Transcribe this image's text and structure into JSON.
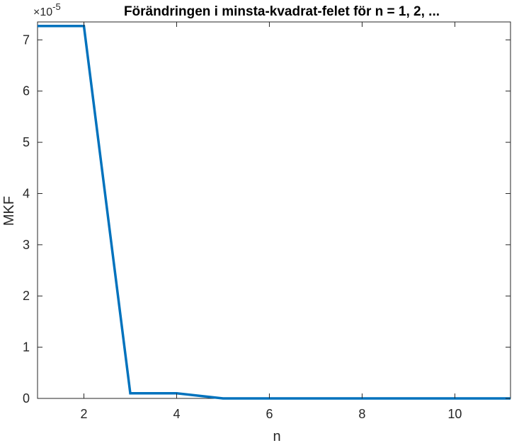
{
  "chart_data": {
    "type": "line",
    "title": "Förändringen i minsta-kvadrat-felet för n = 1, 2, ...",
    "xlabel": "n",
    "ylabel": "MKF",
    "y_exponent_label": "×10",
    "y_exponent_power": "-5",
    "xlim": [
      1,
      11.2
    ],
    "ylim": [
      0,
      7.35
    ],
    "x_scale": "linear",
    "y_scale": "linear",
    "grid": false,
    "legend": "none",
    "x_ticks": [
      2,
      4,
      6,
      8,
      10
    ],
    "x_tick_labels": [
      "2",
      "4",
      "6",
      "8",
      "10"
    ],
    "y_ticks": [
      0,
      1,
      2,
      3,
      4,
      5,
      6,
      7
    ],
    "y_tick_labels": [
      "0",
      "1",
      "2",
      "3",
      "4",
      "5",
      "6",
      "7"
    ],
    "line_color": "#0072BD",
    "axis_color": "#262626",
    "series": [
      {
        "x": [
          1,
          2,
          3,
          4,
          5,
          6,
          7,
          8,
          9,
          10,
          11,
          11.2
        ],
        "y": [
          7.27,
          7.27,
          0.1,
          0.1,
          0.0,
          0.0,
          0.0,
          0.0,
          0.0,
          0.0,
          0.0,
          0.0
        ]
      }
    ]
  }
}
